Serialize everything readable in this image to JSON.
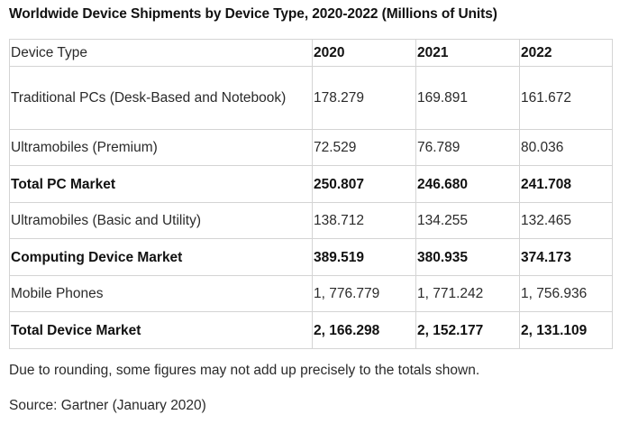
{
  "title": "Worldwide Device Shipments by Device Type, 2020-2022 (Millions of Units)",
  "footnote": "Due to rounding, some figures may not add up precisely to the totals shown.",
  "source": "Source: Gartner (January 2020)",
  "chart_data": {
    "type": "table",
    "title": "Worldwide Device Shipments by Device Type, 2020-2022 (Millions of Units)",
    "columns": [
      "Device Type",
      "2020",
      "2021",
      "2022"
    ],
    "rows": [
      {
        "label": "Traditional PCs (Desk-Based and Notebook)",
        "values": [
          "178.279",
          "169.891",
          "161.672"
        ],
        "bold": false
      },
      {
        "label": "Ultramobiles (Premium)",
        "values": [
          "72.529",
          "76.789",
          "80.036"
        ],
        "bold": false
      },
      {
        "label": "Total PC Market",
        "values": [
          "250.807",
          "246.680",
          "241.708"
        ],
        "bold": true
      },
      {
        "label": "Ultramobiles (Basic and Utility)",
        "values": [
          "138.712",
          "134.255",
          "132.465"
        ],
        "bold": false
      },
      {
        "label": "Computing Device Market",
        "values": [
          "389.519",
          "380.935",
          "374.173"
        ],
        "bold": true
      },
      {
        "label": "Mobile Phones",
        "values": [
          "1, 776.779",
          "1, 771.242",
          "1, 756.936"
        ],
        "bold": false
      },
      {
        "label": "Total Device Market",
        "values": [
          "2, 166.298",
          "2, 152.177",
          "2, 131.109"
        ],
        "bold": true
      }
    ]
  }
}
